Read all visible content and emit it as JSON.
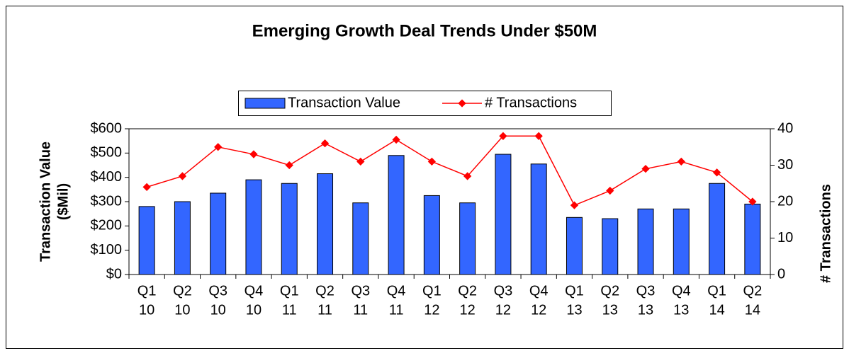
{
  "chart_data": {
    "type": "bar_line",
    "title": "Emerging Growth Deal Trends Under $50M",
    "y_label": [
      "Transaction Value",
      "($Mil)"
    ],
    "y2_label": "# Transactions",
    "categories": [
      [
        "Q1",
        "10"
      ],
      [
        "Q2",
        "10"
      ],
      [
        "Q3",
        "10"
      ],
      [
        "Q4",
        "10"
      ],
      [
        "Q1",
        "11"
      ],
      [
        "Q2",
        "11"
      ],
      [
        "Q3",
        "11"
      ],
      [
        "Q4",
        "11"
      ],
      [
        "Q1",
        "12"
      ],
      [
        "Q2",
        "12"
      ],
      [
        "Q3",
        "12"
      ],
      [
        "Q4",
        "12"
      ],
      [
        "Q1",
        "13"
      ],
      [
        "Q2",
        "13"
      ],
      [
        "Q3",
        "13"
      ],
      [
        "Q4",
        "13"
      ],
      [
        "Q1",
        "14"
      ],
      [
        "Q2",
        "14"
      ]
    ],
    "series": [
      {
        "name": "Transaction Value",
        "color": "#3366ff",
        "values": [
          280,
          300,
          335,
          390,
          375,
          415,
          295,
          490,
          325,
          295,
          495,
          455,
          235,
          230,
          270,
          270,
          375,
          290
        ]
      },
      {
        "name": "# Transactions",
        "color": "#ff0000",
        "axis": "y2",
        "values": [
          24,
          27,
          35,
          33,
          30,
          36,
          31,
          37,
          31,
          27,
          38,
          38,
          19,
          23,
          29,
          31,
          28,
          20
        ]
      }
    ],
    "ylim": [
      0,
      600
    ],
    "yticks": [
      {
        "value": 0,
        "label": "$0"
      },
      {
        "value": 100,
        "label": "$100"
      },
      {
        "value": 200,
        "label": "$200"
      },
      {
        "value": 300,
        "label": "$300"
      },
      {
        "value": 400,
        "label": "$400"
      },
      {
        "value": 500,
        "label": "$500"
      },
      {
        "value": 600,
        "label": "$600"
      }
    ],
    "y2lim": [
      0,
      40
    ],
    "y2ticks": [
      0,
      10,
      20,
      30,
      40
    ],
    "legend": "top"
  }
}
